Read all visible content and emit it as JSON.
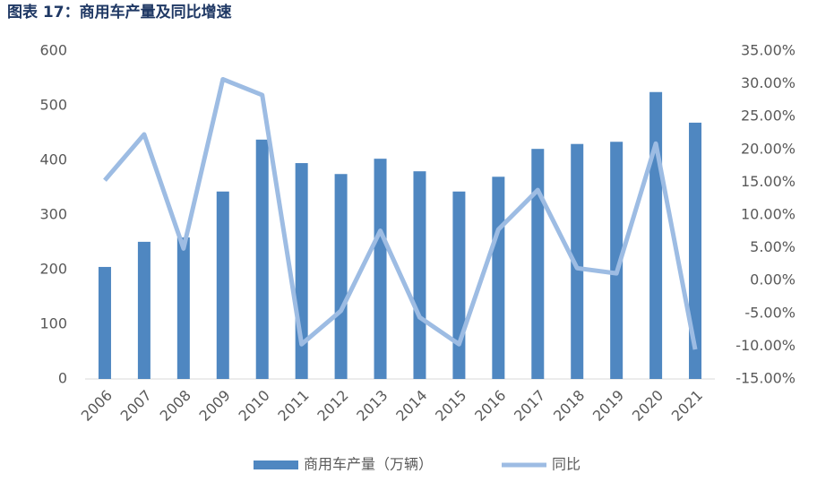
{
  "chart_data": {
    "type": "bar_line",
    "title": "图表 17：商用车产量及同比增速",
    "categories": [
      "2006",
      "2007",
      "2008",
      "2009",
      "2010",
      "2011",
      "2012",
      "2013",
      "2014",
      "2015",
      "2016",
      "2017",
      "2018",
      "2019",
      "2020",
      "2021"
    ],
    "series": [
      {
        "name": "商用车产量（万辆）",
        "type": "bar",
        "color": "#4f87c1",
        "values": [
          205,
          251,
          259,
          343,
          438,
          395,
          375,
          403,
          380,
          343,
          370,
          421,
          430,
          434,
          525,
          469
        ]
      },
      {
        "name": "同比",
        "type": "line",
        "axis": "y2",
        "color": "#9dbce3",
        "values": [
          15.3,
          22.3,
          4.9,
          30.7,
          28.3,
          -9.7,
          -4.6,
          7.6,
          -5.6,
          -9.7,
          7.8,
          13.8,
          1.9,
          1.1,
          20.9,
          -10.5
        ]
      }
    ],
    "ylim": [
      0,
      600
    ],
    "yticks": [
      0,
      100,
      200,
      300,
      400,
      500,
      600
    ],
    "y2lim": [
      -15,
      35
    ],
    "y2ticks": [
      {
        "value": -15,
        "label": "-15.00%"
      },
      {
        "value": -10,
        "label": "-10.00%"
      },
      {
        "value": -5,
        "label": "-5.00%"
      },
      {
        "value": 0,
        "label": "0.00%"
      },
      {
        "value": 5,
        "label": "5.00%"
      },
      {
        "value": 10,
        "label": "10.00%"
      },
      {
        "value": 15,
        "label": "15.00%"
      },
      {
        "value": 20,
        "label": "20.00%"
      },
      {
        "value": 25,
        "label": "25.00%"
      },
      {
        "value": 30,
        "label": "30.00%"
      },
      {
        "value": 35,
        "label": "35.00%"
      }
    ],
    "grid": false,
    "legend": "bottom"
  }
}
